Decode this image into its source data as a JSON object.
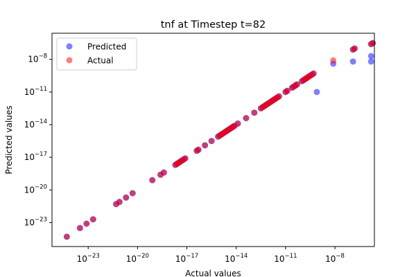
{
  "chart_data": {
    "type": "scatter",
    "title": "tnf at Timestep t=82",
    "xlabel": "Actual values",
    "ylabel": "Predicted values",
    "xscale": "log",
    "yscale": "log",
    "xlim_exp": [
      -25.2,
      -5.6
    ],
    "ylim_exp": [
      -25.2,
      -5.6
    ],
    "xticks": [
      {
        "exp": -23,
        "base": "10",
        "power": "−23"
      },
      {
        "exp": -20,
        "base": "10",
        "power": "−20"
      },
      {
        "exp": -17,
        "base": "10",
        "power": "−17"
      },
      {
        "exp": -14,
        "base": "10",
        "power": "−14"
      },
      {
        "exp": -11,
        "base": "10",
        "power": "−11"
      },
      {
        "exp": -8,
        "base": "10",
        "power": "−8"
      }
    ],
    "yticks": [
      {
        "exp": -23,
        "base": "10",
        "power": "−23"
      },
      {
        "exp": -20,
        "base": "10",
        "power": "−20"
      },
      {
        "exp": -17,
        "base": "10",
        "power": "−17"
      },
      {
        "exp": -14,
        "base": "10",
        "power": "−14"
      },
      {
        "exp": -11,
        "base": "10",
        "power": "−11"
      },
      {
        "exp": -8,
        "base": "10",
        "power": "−8"
      }
    ],
    "grid": false,
    "legend_position": "upper-left",
    "series": [
      {
        "name": "Predicted",
        "color": "#0000ff",
        "points": [
          [
            -24.3,
            -24.3
          ],
          [
            -23.5,
            -23.5
          ],
          [
            -23.1,
            -23.1
          ],
          [
            -22.7,
            -22.7
          ],
          [
            -21.3,
            -21.3
          ],
          [
            -21.1,
            -21.1
          ],
          [
            -20.7,
            -20.7
          ],
          [
            -20.3,
            -20.3
          ],
          [
            -19.1,
            -19.1
          ],
          [
            -18.6,
            -18.6
          ],
          [
            -18.4,
            -18.4
          ],
          [
            -17.7,
            -17.7
          ],
          [
            -17.6,
            -17.6
          ],
          [
            -17.5,
            -17.5
          ],
          [
            -17.4,
            -17.4
          ],
          [
            -17.3,
            -17.3
          ],
          [
            -17.2,
            -17.2
          ],
          [
            -17.1,
            -17.1
          ],
          [
            -16.4,
            -16.4
          ],
          [
            -16.3,
            -16.3
          ],
          [
            -15.9,
            -15.9
          ],
          [
            -15.5,
            -15.5
          ],
          [
            -15.1,
            -15.1
          ],
          [
            -15.0,
            -15.0
          ],
          [
            -14.9,
            -14.9
          ],
          [
            -14.8,
            -14.8
          ],
          [
            -14.7,
            -14.7
          ],
          [
            -14.6,
            -14.6
          ],
          [
            -14.5,
            -14.5
          ],
          [
            -14.4,
            -14.4
          ],
          [
            -14.3,
            -14.3
          ],
          [
            -14.2,
            -14.2
          ],
          [
            -14.1,
            -14.1
          ],
          [
            -13.9,
            -13.9
          ],
          [
            -13.4,
            -13.4
          ],
          [
            -12.9,
            -12.9
          ],
          [
            -12.5,
            -12.5
          ],
          [
            -12.4,
            -12.4
          ],
          [
            -12.3,
            -12.3
          ],
          [
            -12.2,
            -12.2
          ],
          [
            -12.1,
            -12.1
          ],
          [
            -12.0,
            -12.0
          ],
          [
            -11.9,
            -11.9
          ],
          [
            -11.8,
            -11.8
          ],
          [
            -11.7,
            -11.7
          ],
          [
            -11.6,
            -11.6
          ],
          [
            -11.5,
            -11.5
          ],
          [
            -11.4,
            -11.4
          ],
          [
            -11.0,
            -11.0
          ],
          [
            -10.9,
            -10.9
          ],
          [
            -10.6,
            -10.6
          ],
          [
            -10.5,
            -10.5
          ],
          [
            -10.4,
            -10.4
          ],
          [
            -10.3,
            -10.3
          ],
          [
            -10.0,
            -10.0
          ],
          [
            -9.9,
            -9.9
          ],
          [
            -9.8,
            -9.8
          ],
          [
            -9.7,
            -9.7
          ],
          [
            -9.6,
            -9.6
          ],
          [
            -9.5,
            -9.5
          ],
          [
            -9.4,
            -9.4
          ],
          [
            -9.3,
            -9.3
          ],
          [
            -9.1,
            -11.0
          ],
          [
            -8.1,
            -8.4
          ],
          [
            -6.9,
            -8.2
          ],
          [
            -5.8,
            -8.2
          ],
          [
            -5.8,
            -7.7
          ],
          [
            -6.9,
            -7.1
          ],
          [
            -6.8,
            -7.0
          ],
          [
            -5.8,
            -6.6
          ],
          [
            -5.7,
            -6.5
          ]
        ]
      },
      {
        "name": "Actual",
        "color": "#ff0000",
        "points": [
          [
            -24.3,
            -24.3
          ],
          [
            -23.5,
            -23.5
          ],
          [
            -23.1,
            -23.1
          ],
          [
            -22.7,
            -22.7
          ],
          [
            -21.3,
            -21.3
          ],
          [
            -21.1,
            -21.1
          ],
          [
            -20.7,
            -20.7
          ],
          [
            -20.3,
            -20.3
          ],
          [
            -19.1,
            -19.1
          ],
          [
            -18.6,
            -18.6
          ],
          [
            -18.4,
            -18.4
          ],
          [
            -17.7,
            -17.7
          ],
          [
            -17.6,
            -17.6
          ],
          [
            -17.5,
            -17.5
          ],
          [
            -17.4,
            -17.4
          ],
          [
            -17.3,
            -17.3
          ],
          [
            -17.2,
            -17.2
          ],
          [
            -17.1,
            -17.1
          ],
          [
            -16.4,
            -16.4
          ],
          [
            -16.3,
            -16.3
          ],
          [
            -15.9,
            -15.9
          ],
          [
            -15.5,
            -15.5
          ],
          [
            -15.1,
            -15.1
          ],
          [
            -15.0,
            -15.0
          ],
          [
            -14.9,
            -14.9
          ],
          [
            -14.8,
            -14.8
          ],
          [
            -14.7,
            -14.7
          ],
          [
            -14.6,
            -14.6
          ],
          [
            -14.5,
            -14.5
          ],
          [
            -14.4,
            -14.4
          ],
          [
            -14.3,
            -14.3
          ],
          [
            -14.2,
            -14.2
          ],
          [
            -14.1,
            -14.1
          ],
          [
            -13.9,
            -13.9
          ],
          [
            -13.4,
            -13.4
          ],
          [
            -12.9,
            -12.9
          ],
          [
            -12.5,
            -12.5
          ],
          [
            -12.4,
            -12.4
          ],
          [
            -12.3,
            -12.3
          ],
          [
            -12.2,
            -12.2
          ],
          [
            -12.1,
            -12.1
          ],
          [
            -12.0,
            -12.0
          ],
          [
            -11.9,
            -11.9
          ],
          [
            -11.8,
            -11.8
          ],
          [
            -11.7,
            -11.7
          ],
          [
            -11.6,
            -11.6
          ],
          [
            -11.5,
            -11.5
          ],
          [
            -11.4,
            -11.4
          ],
          [
            -11.0,
            -11.0
          ],
          [
            -10.9,
            -10.9
          ],
          [
            -10.6,
            -10.6
          ],
          [
            -10.5,
            -10.5
          ],
          [
            -10.4,
            -10.4
          ],
          [
            -10.3,
            -10.3
          ],
          [
            -10.0,
            -10.0
          ],
          [
            -9.9,
            -9.9
          ],
          [
            -9.8,
            -9.8
          ],
          [
            -9.7,
            -9.7
          ],
          [
            -9.6,
            -9.6
          ],
          [
            -9.5,
            -9.5
          ],
          [
            -9.4,
            -9.4
          ],
          [
            -9.3,
            -9.3
          ],
          [
            -8.1,
            -8.1
          ],
          [
            -6.9,
            -7.1
          ],
          [
            -6.8,
            -7.0
          ],
          [
            -5.8,
            -6.6
          ],
          [
            -5.7,
            -6.5
          ]
        ]
      }
    ]
  }
}
